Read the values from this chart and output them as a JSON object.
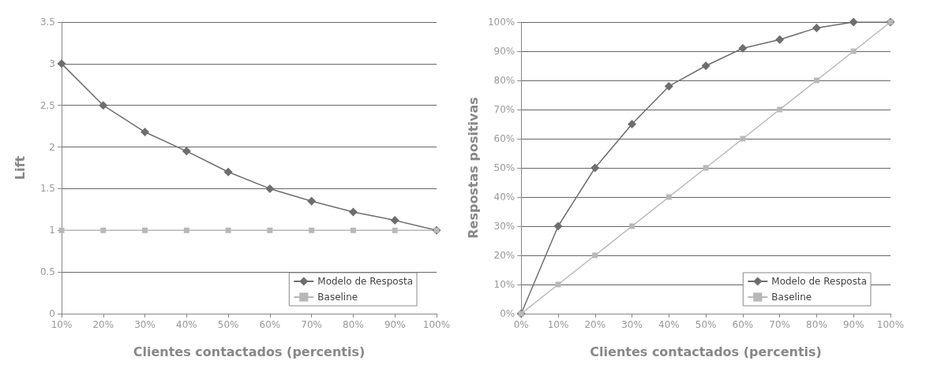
{
  "chart_data": [
    {
      "type": "line",
      "xlabel": "Clientes contactados (percentis)",
      "ylabel": "Lift",
      "categories": [
        "10%",
        "20%",
        "30%",
        "40%",
        "50%",
        "60%",
        "70%",
        "80%",
        "90%",
        "100%"
      ],
      "series": [
        {
          "name": "Modelo de Resposta",
          "color": "#6e6e6e",
          "marker": "diamond",
          "values": [
            3,
            2.5,
            2.18,
            1.95,
            1.7,
            1.5,
            1.35,
            1.22,
            1.12,
            1.0
          ]
        },
        {
          "name": "Baseline",
          "color": "#b8b8b8",
          "marker": "square",
          "values": [
            1,
            1,
            1,
            1,
            1,
            1,
            1,
            1,
            1,
            1
          ]
        }
      ],
      "ylim": [
        0,
        3.5
      ],
      "yticks": [
        0,
        0.5,
        1,
        1.5,
        2,
        2.5,
        3,
        3.5
      ],
      "grid": "y",
      "legend": "bottom right",
      "line_style": "solid"
    },
    {
      "type": "line",
      "xlabel": "Clientes contactados (percentis)",
      "ylabel": "Respostas positivas",
      "categories": [
        "0%",
        "10%",
        "20%",
        "30%",
        "40%",
        "50%",
        "60%",
        "70%",
        "80%",
        "90%",
        "100%"
      ],
      "series": [
        {
          "name": "Modelo de Resposta",
          "color": "#6e6e6e",
          "marker": "diamond",
          "values": [
            0,
            30,
            50,
            65,
            78,
            85,
            91,
            94,
            98,
            100,
            100
          ]
        },
        {
          "name": "Baseline",
          "color": "#b8b8b8",
          "marker": "square",
          "values": [
            0,
            10,
            20,
            30,
            40,
            50,
            60,
            70,
            80,
            90,
            100
          ]
        }
      ],
      "ylim": [
        0,
        100
      ],
      "yticks": [
        {
          "value": 0,
          "label": "0%"
        },
        {
          "value": 10,
          "label": "10%"
        },
        {
          "value": 20,
          "label": "20%"
        },
        {
          "value": 30,
          "label": "30%"
        },
        {
          "value": 40,
          "label": "40%"
        },
        {
          "value": 50,
          "label": "50%"
        },
        {
          "value": 60,
          "label": "60%"
        },
        {
          "value": 70,
          "label": "70%"
        },
        {
          "value": 80,
          "label": "80%"
        },
        {
          "value": 90,
          "label": "90%"
        },
        {
          "value": 100,
          "label": "100%"
        }
      ],
      "grid": "y",
      "legend": "bottom right",
      "line_style": "solid"
    }
  ]
}
